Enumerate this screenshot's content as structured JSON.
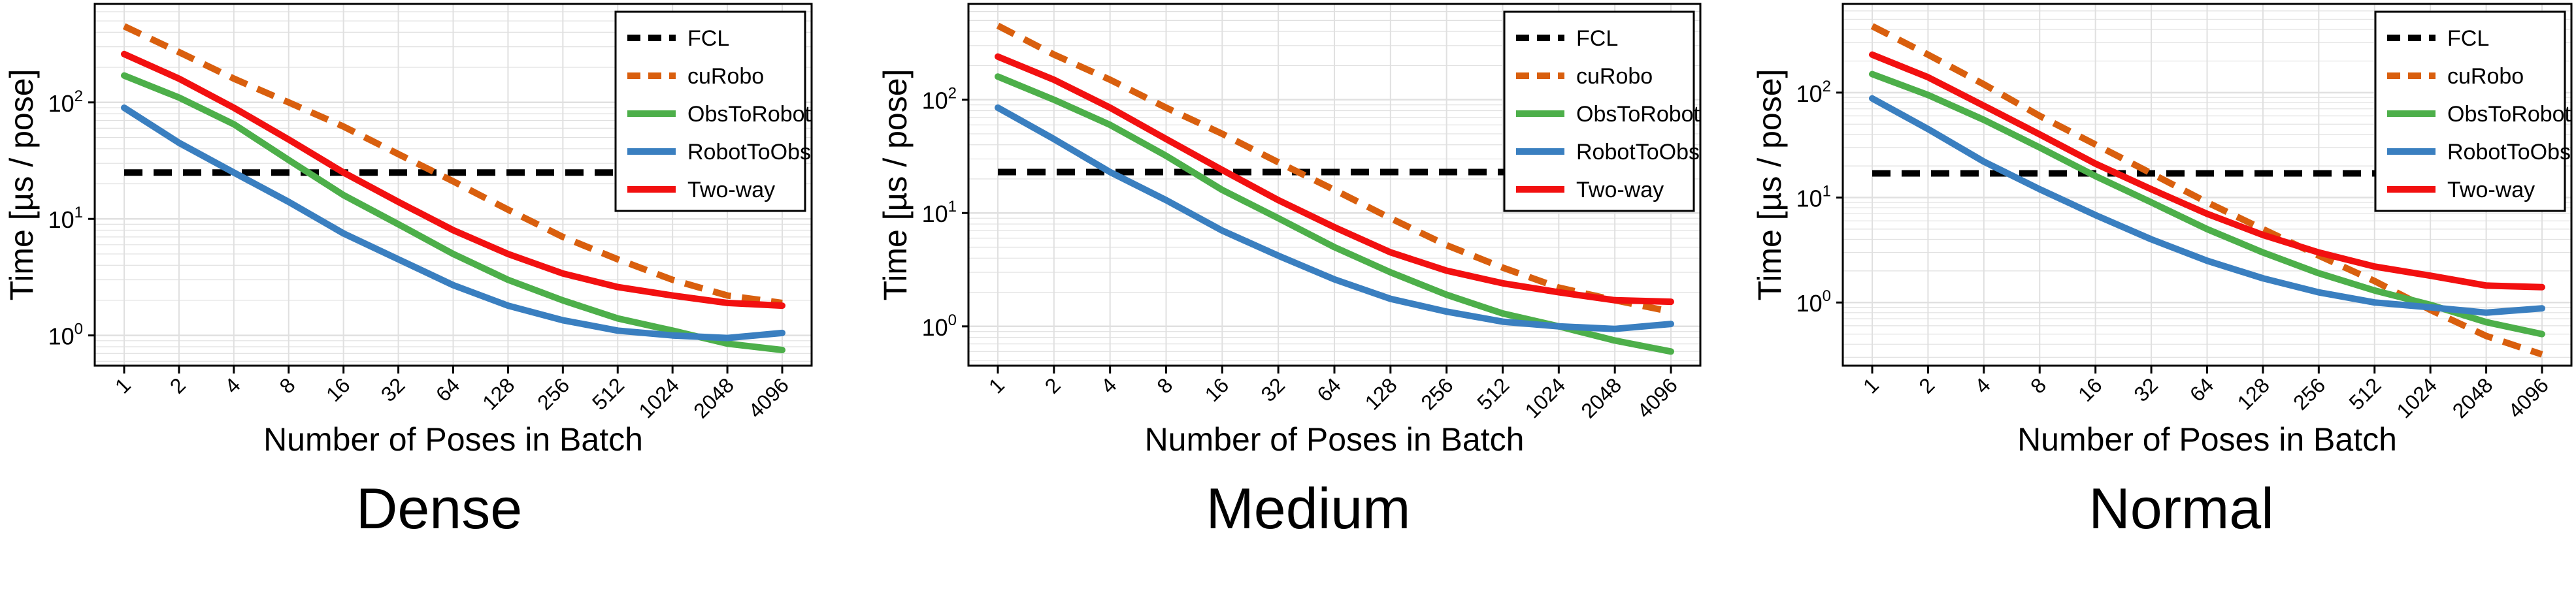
{
  "captions": [
    "Dense",
    "Medium",
    "Normal"
  ],
  "colors": {
    "FCL": "#000000",
    "cuRobo": "#d95f0e",
    "ObsToRobot": "#4daf4a",
    "RobotToObs": "#3a7fc0",
    "Two-way": "#f21010",
    "grid": "#e0e0e0"
  },
  "chart_data": [
    {
      "type": "line",
      "title": "Dense",
      "xlabel": "Number of Poses in Batch",
      "ylabel": "Time [µs / pose]",
      "x": [
        "1",
        "2",
        "4",
        "8",
        "16",
        "32",
        "64",
        "128",
        "256",
        "512",
        "1024",
        "2048",
        "4096"
      ],
      "y_scale": "log",
      "ylim": [
        0.55,
        700
      ],
      "yticks": [
        {
          "value": 1,
          "base": "10",
          "exp": "0"
        },
        {
          "value": 10,
          "base": "10",
          "exp": "1"
        },
        {
          "value": 100,
          "base": "10",
          "exp": "2"
        }
      ],
      "grid": true,
      "legend": "top-right",
      "series": [
        {
          "name": "FCL",
          "style": "dashed",
          "values": [
            25,
            25,
            25,
            25,
            25,
            25,
            25,
            25,
            25,
            25,
            25,
            25,
            25
          ]
        },
        {
          "name": "cuRobo",
          "style": "dashed",
          "values": [
            450,
            270,
            160,
            100,
            62,
            36,
            21,
            12,
            7,
            4.5,
            3.0,
            2.2,
            1.9
          ]
        },
        {
          "name": "ObsToRobot",
          "style": "solid",
          "values": [
            170,
            110,
            65,
            32,
            16,
            9,
            5,
            3.0,
            2.0,
            1.4,
            1.1,
            0.85,
            0.75
          ]
        },
        {
          "name": "RobotToObs",
          "style": "solid",
          "values": [
            90,
            45,
            25,
            14,
            7.5,
            4.5,
            2.7,
            1.8,
            1.35,
            1.1,
            1.0,
            0.95,
            1.05
          ]
        },
        {
          "name": "Two-way",
          "style": "solid",
          "values": [
            260,
            160,
            90,
            48,
            25,
            14,
            8,
            5,
            3.4,
            2.6,
            2.2,
            1.9,
            1.8
          ]
        }
      ]
    },
    {
      "type": "line",
      "title": "Medium",
      "xlabel": "Number of Poses in Batch",
      "ylabel": "Time [µs / pose]",
      "x": [
        "1",
        "2",
        "4",
        "8",
        "16",
        "32",
        "64",
        "128",
        "256",
        "512",
        "1024",
        "2048",
        "4096"
      ],
      "y_scale": "log",
      "ylim": [
        0.45,
        700
      ],
      "yticks": [
        {
          "value": 1,
          "base": "10",
          "exp": "0"
        },
        {
          "value": 10,
          "base": "10",
          "exp": "1"
        },
        {
          "value": 100,
          "base": "10",
          "exp": "2"
        }
      ],
      "grid": true,
      "legend": "top-right",
      "series": [
        {
          "name": "FCL",
          "style": "dashed",
          "values": [
            23,
            23,
            23,
            23,
            23,
            23,
            23,
            23,
            23,
            23,
            23,
            23,
            23
          ]
        },
        {
          "name": "cuRobo",
          "style": "dashed",
          "values": [
            450,
            250,
            150,
            85,
            50,
            28,
            16,
            9,
            5.2,
            3.3,
            2.2,
            1.7,
            1.35
          ]
        },
        {
          "name": "ObsToRobot",
          "style": "solid",
          "values": [
            160,
            100,
            60,
            32,
            16,
            9,
            5,
            3.0,
            1.9,
            1.3,
            1.0,
            0.75,
            0.6
          ]
        },
        {
          "name": "RobotToObs",
          "style": "solid",
          "values": [
            85,
            45,
            23,
            13,
            7,
            4.2,
            2.6,
            1.75,
            1.35,
            1.1,
            1.0,
            0.95,
            1.05
          ]
        },
        {
          "name": "Two-way",
          "style": "solid",
          "values": [
            240,
            150,
            85,
            45,
            24,
            13,
            7.5,
            4.5,
            3.1,
            2.4,
            2.0,
            1.7,
            1.65
          ]
        }
      ]
    },
    {
      "type": "line",
      "title": "Normal",
      "xlabel": "Number of Poses in Batch",
      "ylabel": "Time [µs / pose]",
      "x": [
        "1",
        "2",
        "4",
        "8",
        "16",
        "32",
        "64",
        "128",
        "256",
        "512",
        "1024",
        "2048",
        "4096"
      ],
      "y_scale": "log",
      "ylim": [
        0.25,
        700
      ],
      "yticks": [
        {
          "value": 1,
          "base": "10",
          "exp": "0"
        },
        {
          "value": 10,
          "base": "10",
          "exp": "1"
        },
        {
          "value": 100,
          "base": "10",
          "exp": "2"
        }
      ],
      "grid": true,
      "legend": "top-right",
      "series": [
        {
          "name": "FCL",
          "style": "dashed",
          "values": [
            17,
            17,
            17,
            17,
            17,
            17,
            17,
            17,
            17,
            17,
            17,
            17,
            17
          ]
        },
        {
          "name": "cuRobo",
          "style": "dashed",
          "values": [
            430,
            230,
            120,
            60,
            32,
            17,
            9,
            5,
            2.8,
            1.6,
            0.85,
            0.48,
            0.32
          ]
        },
        {
          "name": "ObsToRobot",
          "style": "solid",
          "values": [
            150,
            95,
            55,
            30,
            16,
            9,
            5,
            3.0,
            1.9,
            1.3,
            0.95,
            0.65,
            0.5
          ]
        },
        {
          "name": "RobotToObs",
          "style": "solid",
          "values": [
            88,
            45,
            22,
            12,
            6.8,
            4.0,
            2.5,
            1.7,
            1.25,
            1.0,
            0.9,
            0.8,
            0.88
          ]
        },
        {
          "name": "Two-way",
          "style": "solid",
          "values": [
            230,
            140,
            75,
            40,
            21,
            12,
            7,
            4.4,
            3.0,
            2.2,
            1.8,
            1.45,
            1.4
          ]
        }
      ]
    }
  ]
}
